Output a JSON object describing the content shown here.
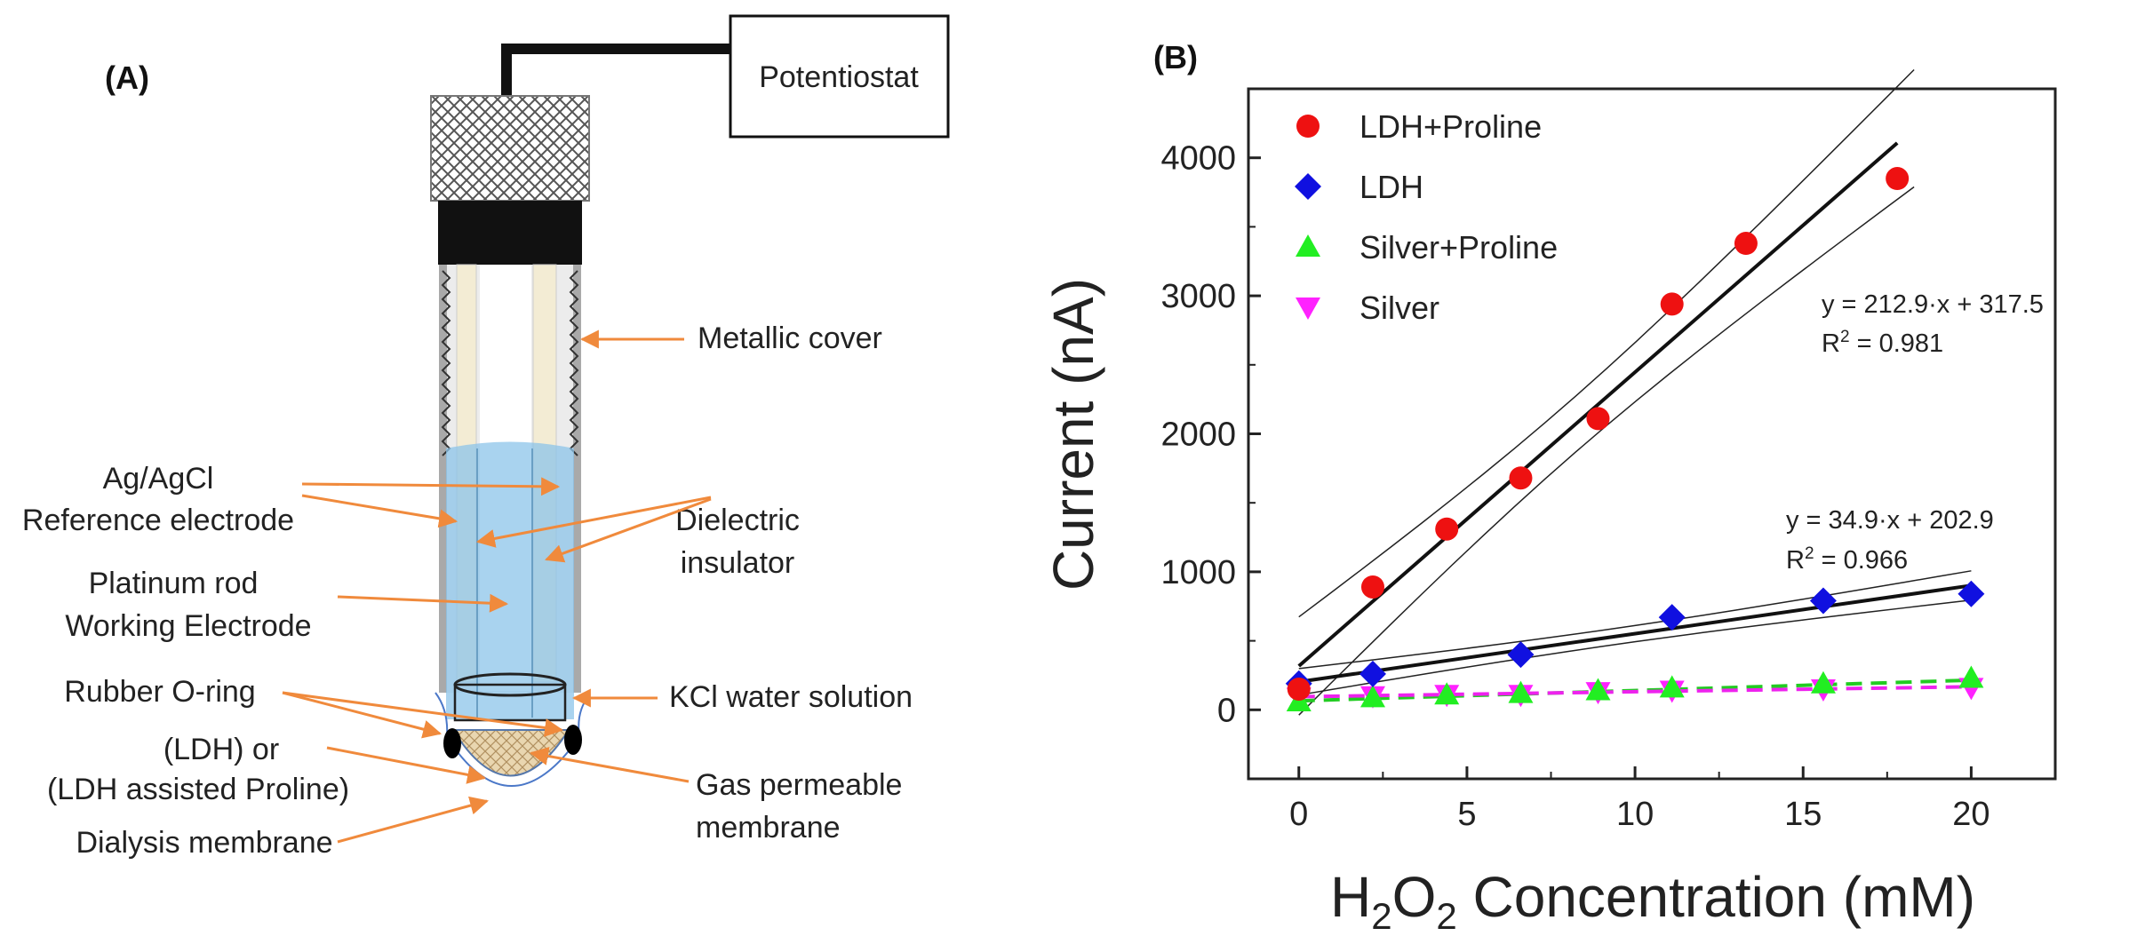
{
  "panel_a": {
    "tag": "(A)",
    "potentiostat": "Potentiostat",
    "labels": {
      "metallic_cover": "Metallic cover",
      "ref_line1": "Ag/AgCl",
      "ref_line2": "Reference electrode",
      "dielectric_line1": "Dielectric",
      "dielectric_line2": "insulator",
      "pt_line1": "Platinum rod",
      "pt_line2": "Working Electrode",
      "oring": "Rubber O-ring",
      "ldh_line1": "(LDH) or",
      "ldh_line2": "(LDH assisted Proline)",
      "dialysis": "Dialysis membrane",
      "kcl": "KCl water solution",
      "gas_line1": "Gas permeable",
      "gas_line2": "membrane"
    }
  },
  "panel_b": {
    "tag": "(B)",
    "fit1_line1": "y = 212.9·x + 317.5",
    "fit1_r2_prefix": "R",
    "fit1_r2_sup": "2",
    "fit1_r2_value": " = 0.981",
    "fit2_line1": "y = 34.9·x + 202.9",
    "fit2_r2_prefix": "R",
    "fit2_r2_sup": "2",
    "fit2_r2_value": " = 0.966",
    "xlabel_pre": "H",
    "xlabel_sub1": "2",
    "xlabel_mid": "O",
    "xlabel_sub2": "2",
    "xlabel_post": " Concentration (mM)"
  },
  "chart_data": {
    "type": "scatter",
    "ylabel": "Current (nA)",
    "xlabel": "H2O2 Concentration (mM)",
    "xlim": [
      -1.5,
      22.5
    ],
    "ylim": [
      -500,
      4500
    ],
    "xticks": [
      0,
      5,
      10,
      15,
      20
    ],
    "yticks": [
      0,
      1000,
      2000,
      3000,
      4000
    ],
    "legend_position": "top-left",
    "series": [
      {
        "name": "LDH+Proline",
        "marker": "circle",
        "color": "#ee1111",
        "x": [
          0,
          2.2,
          4.4,
          6.6,
          8.9,
          11.1,
          13.3,
          17.8
        ],
        "y": [
          150,
          890,
          1310,
          1680,
          2110,
          2940,
          3380,
          3850
        ]
      },
      {
        "name": "LDH",
        "marker": "diamond",
        "color": "#1010e0",
        "x": [
          0,
          2.2,
          6.6,
          11.1,
          15.6,
          20
        ],
        "y": [
          190,
          260,
          400,
          670,
          790,
          840
        ]
      },
      {
        "name": "Silver+Proline",
        "marker": "triangle-up",
        "color": "#22ee22",
        "x": [
          0,
          2.2,
          4.4,
          6.6,
          8.9,
          11.1,
          15.6,
          20
        ],
        "y": [
          60,
          90,
          110,
          120,
          140,
          160,
          190,
          230
        ]
      },
      {
        "name": "Silver",
        "marker": "triangle-down",
        "color": "#ff22ff",
        "x": [
          0,
          2.2,
          4.4,
          6.6,
          8.9,
          11.1,
          15.6,
          20
        ],
        "y": [
          90,
          100,
          110,
          110,
          130,
          140,
          150,
          160
        ]
      }
    ],
    "fits": [
      {
        "series": "LDH+Proline",
        "slope": 212.9,
        "intercept": 317.5,
        "r2": 0.981,
        "x_range": [
          0,
          17.8
        ],
        "confidence_band": true
      },
      {
        "series": "LDH",
        "slope": 34.9,
        "intercept": 202.9,
        "r2": 0.966,
        "x_range": [
          0,
          20
        ],
        "confidence_band": true
      },
      {
        "series": "Silver+Proline",
        "slope": 7.5,
        "intercept": 65,
        "x_range": [
          0,
          20
        ],
        "dashed": true,
        "color": "#22cc22"
      },
      {
        "series": "Silver",
        "slope": 3.6,
        "intercept": 95,
        "x_range": [
          0,
          20
        ],
        "dashed": true,
        "color": "#ee22ee"
      }
    ]
  }
}
